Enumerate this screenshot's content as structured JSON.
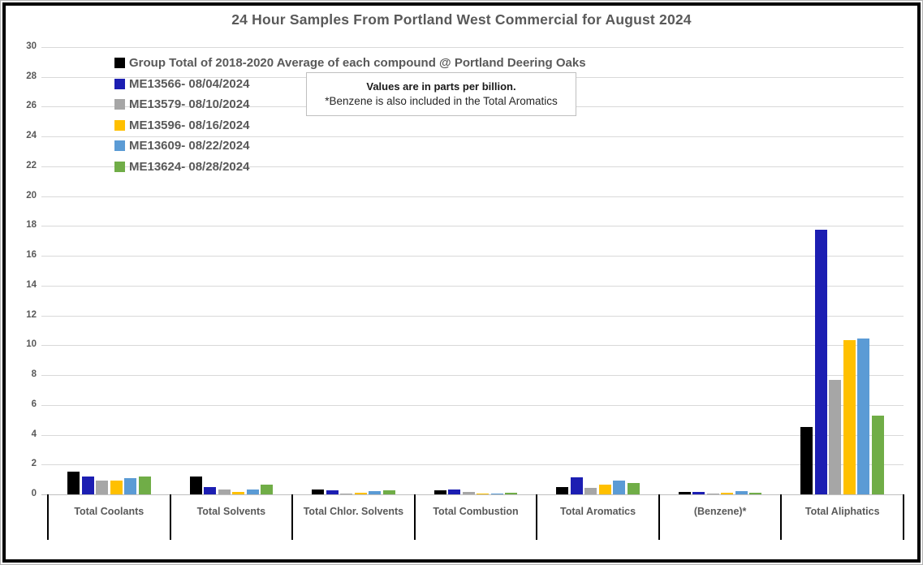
{
  "title": "24 Hour Samples From Portland West Commercial for August 2024",
  "note": {
    "line1": "Values are in parts per billion.",
    "line2": "*Benzene is also included in the Total Aromatics"
  },
  "colors": {
    "gridline": "#d9d9d9",
    "axis": "#bfbfbf",
    "label_text": "#595959",
    "category_tick": "#000000",
    "frame": "#000000"
  },
  "chart_data": {
    "type": "bar",
    "title": "24 Hour Samples From Portland West Commercial for August 2024",
    "unit": "parts per billion",
    "xlabel": "",
    "ylabel": "",
    "ylim": [
      0,
      30
    ],
    "ystep": 2,
    "grid": true,
    "legend_position": "top-left",
    "categories": [
      "Total Coolants",
      "Total Solvents",
      "Total Chlor. Solvents",
      "Total Combustion",
      "Total Aromatics",
      "(Benzene)*",
      "Total Aliphatics"
    ],
    "series": [
      {
        "name": "Group Total of 2018-2020 Average of each compound @ Portland Deering Oaks",
        "color": "#000000",
        "values": [
          1.55,
          1.2,
          0.35,
          0.27,
          0.5,
          0.15,
          4.5
        ]
      },
      {
        "name": "ME13566- 08/04/2024",
        "color": "#1c1eb2",
        "values": [
          1.2,
          0.5,
          0.25,
          0.3,
          1.15,
          0.18,
          17.75
        ]
      },
      {
        "name": "ME13579- 08/10/2024",
        "color": "#a6a6a6",
        "values": [
          0.95,
          0.3,
          0.08,
          0.16,
          0.45,
          0.06,
          7.7
        ]
      },
      {
        "name": "ME13596- 08/16/2024",
        "color": "#ffc000",
        "values": [
          0.95,
          0.15,
          0.13,
          0.08,
          0.65,
          0.13,
          10.35
        ]
      },
      {
        "name": "ME13609- 08/22/2024",
        "color": "#5b9bd5",
        "values": [
          1.1,
          0.35,
          0.2,
          0.06,
          0.95,
          0.2,
          10.45
        ]
      },
      {
        "name": "ME13624- 08/28/2024",
        "color": "#70ad47",
        "values": [
          1.2,
          0.65,
          0.25,
          0.11,
          0.75,
          0.11,
          5.3
        ]
      }
    ]
  }
}
